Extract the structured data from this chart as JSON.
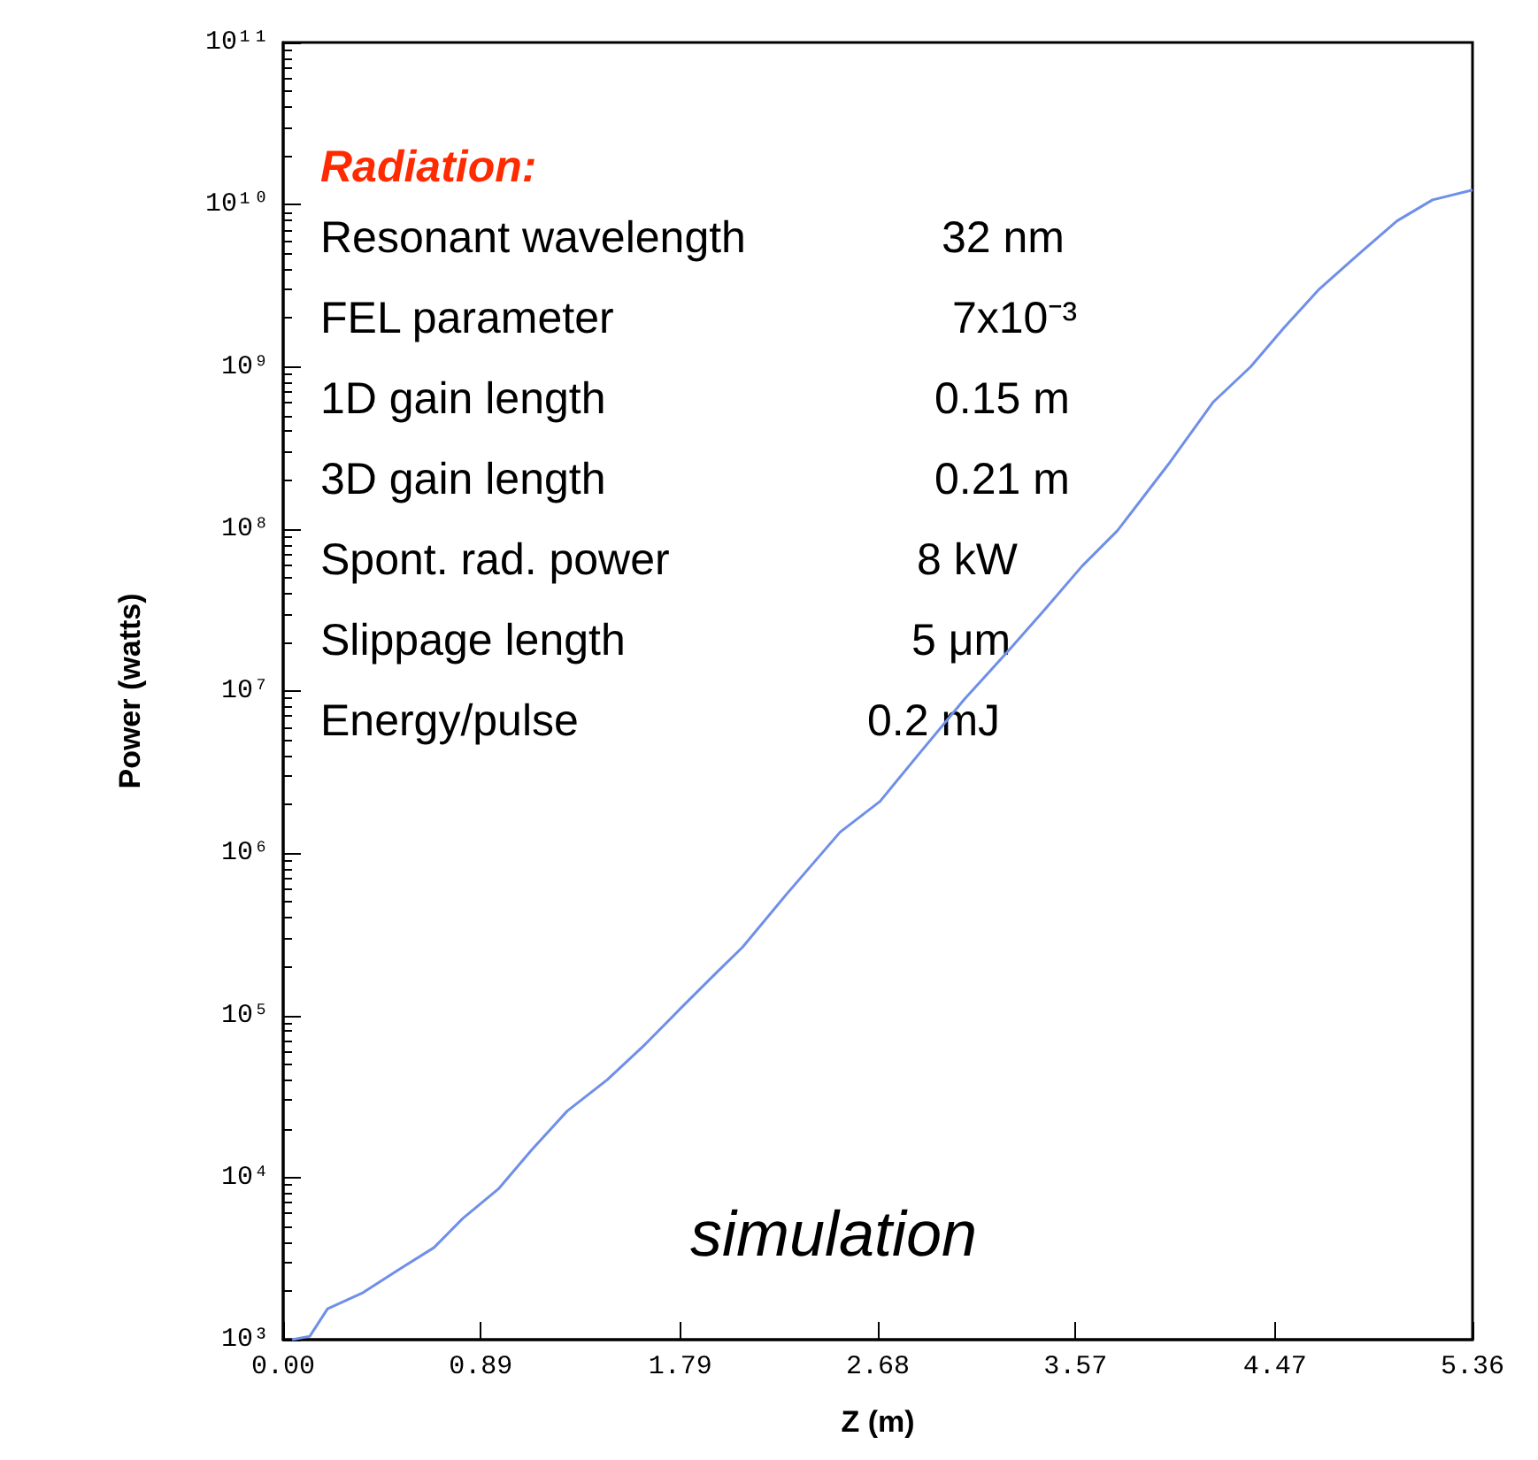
{
  "chart_data": {
    "type": "line",
    "xlabel": "Z (m)",
    "ylabel": "Power (watts)",
    "x": [
      0.04,
      0.12,
      0.2,
      0.36,
      0.52,
      0.68,
      0.81,
      0.97,
      1.12,
      1.28,
      1.46,
      1.63,
      1.79,
      1.95,
      2.07,
      2.27,
      2.51,
      2.69,
      2.87,
      3.07,
      3.27,
      3.43,
      3.6,
      3.76,
      3.99,
      4.19,
      4.36,
      4.51,
      4.67,
      4.86,
      5.02,
      5.18,
      5.36
    ],
    "series": [
      {
        "color": "#6f8fe8",
        "values": [
          1000,
          1050,
          1550,
          1950,
          2700,
          3700,
          5600,
          8500,
          14800,
          25700,
          40000,
          66000,
          110000,
          182000,
          263000,
          562000,
          1350000,
          2090000,
          4170000,
          8900000,
          17800000,
          31600000,
          58900000,
          97700000,
          251000000,
          603000000,
          1000000000,
          1740000000,
          3020000000,
          5130000000,
          7940000000,
          10700000000,
          12300000000
        ]
      }
    ],
    "xlim": [
      0,
      5.36
    ],
    "ylim": [
      1000,
      100000000000
    ],
    "xticks": [
      {
        "value": 0,
        "label": "0.00"
      },
      0.89,
      1.79,
      2.68,
      3.57,
      4.47,
      5.36
    ],
    "yticks": [
      {
        "value": 1000,
        "label": "10³"
      },
      {
        "value": 10000,
        "label": "10⁴"
      },
      {
        "value": 100000,
        "label": "10⁵"
      },
      {
        "value": 1000000,
        "label": "10⁶"
      },
      {
        "value": 10000000,
        "label": "10⁷"
      },
      {
        "value": 100000000,
        "label": "10⁸"
      },
      {
        "value": 1000000000,
        "label": "10⁹"
      },
      {
        "value": 10000000000,
        "label": "10¹⁰"
      },
      {
        "value": 100000000000,
        "label": "10¹¹"
      }
    ],
    "log": "y",
    "grid": false,
    "marker": "none",
    "line_style": "solid",
    "annotations": [
      "Radiation:",
      "Resonant wavelength",
      "32 nm",
      "FEL parameter",
      "7x10⁻³",
      "1D gain length",
      "0.15 m",
      "3D gain length",
      "0.21 m",
      "Spont. rad. power",
      "8 kW",
      "Slippage length",
      "5 μm",
      "Energy/pulse",
      "0.2 mJ",
      "simulation"
    ]
  }
}
